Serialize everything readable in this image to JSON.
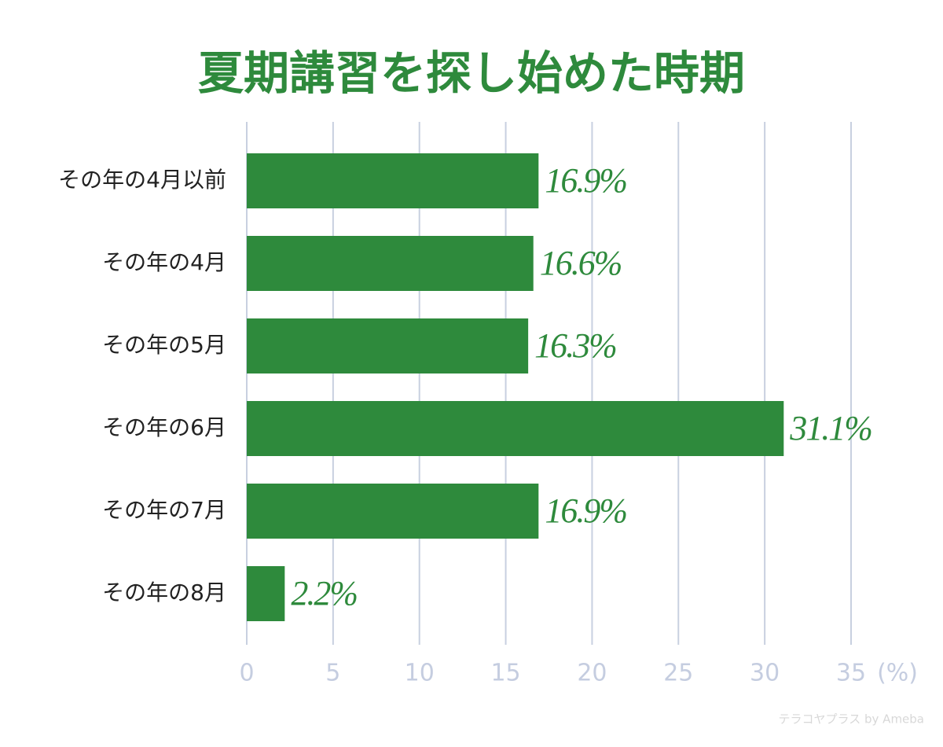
{
  "chart_data": {
    "type": "hbar",
    "title": "夏期講習を探し始めた時期",
    "categories": [
      "その年の4月以前",
      "その年の4月",
      "その年の5月",
      "その年の6月",
      "その年の7月",
      "その年の8月"
    ],
    "values": [
      16.9,
      16.6,
      16.3,
      31.1,
      16.9,
      2.2
    ],
    "value_labels": [
      "16.9%",
      "16.6%",
      "16.3%",
      "31.1%",
      "16.9%",
      "2.2%"
    ],
    "color": "#2e8a3c",
    "xlim": [
      0,
      35
    ],
    "xticks": [
      0,
      5,
      10,
      15,
      20,
      25,
      30,
      35
    ],
    "xlabel": "(%)",
    "grid": true,
    "watermark": "テラコヤプラス by Ameba"
  }
}
